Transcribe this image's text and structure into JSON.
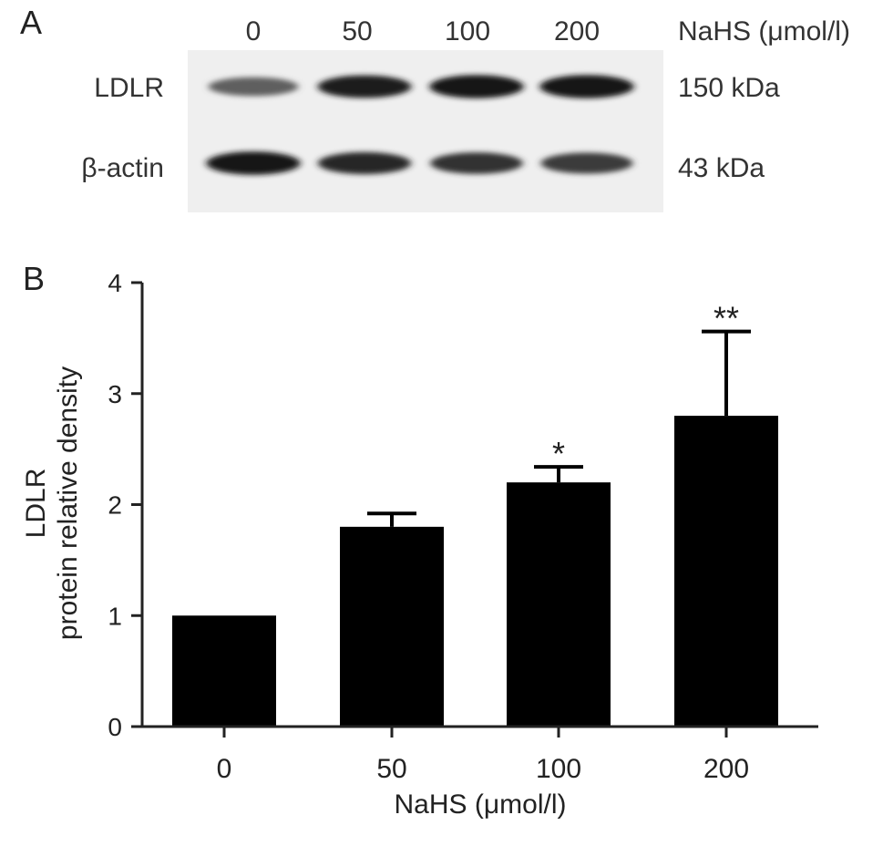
{
  "panel_a": {
    "letter": "A",
    "lane_labels": [
      "0",
      "50",
      "100",
      "200"
    ],
    "treatment_label": "NaHS (μmol/l)",
    "rows": [
      {
        "label": "LDLR",
        "size": "150 kDa",
        "intensities": [
          0.55,
          0.9,
          0.95,
          0.95
        ]
      },
      {
        "label": "β-actin",
        "size": "43 kDa",
        "intensities": [
          0.95,
          0.85,
          0.8,
          0.75
        ]
      }
    ]
  },
  "chart_data": {
    "panel_letter": "B",
    "type": "bar",
    "categories": [
      "0",
      "50",
      "100",
      "200"
    ],
    "values": [
      1.0,
      1.8,
      2.2,
      2.8
    ],
    "errors": [
      0.0,
      0.12,
      0.14,
      0.76
    ],
    "significance": [
      "",
      "",
      "*",
      "**"
    ],
    "xlabel": "NaHS (μmol/l)",
    "ylabel_line1": "LDLR",
    "ylabel_line2": "protein relative density",
    "ylim": [
      0,
      4
    ],
    "yticks": [
      "0",
      "1",
      "2",
      "3",
      "4"
    ],
    "bar_color": "#000000",
    "grid": false
  }
}
